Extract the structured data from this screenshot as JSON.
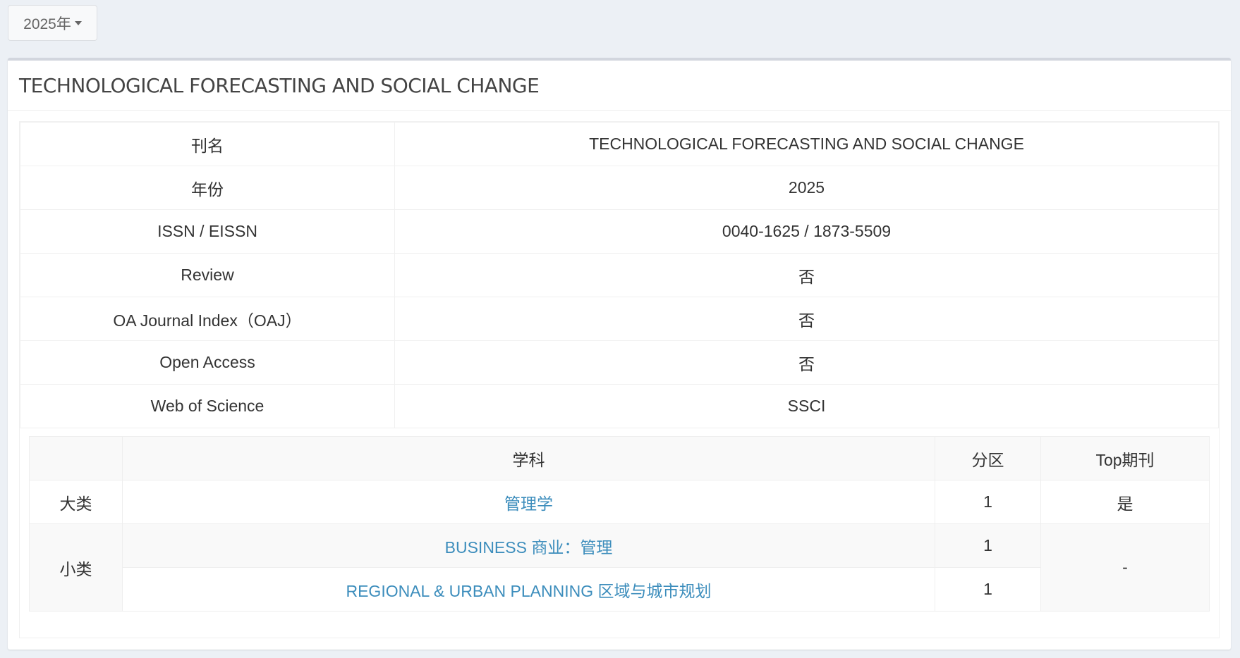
{
  "year_dropdown": {
    "label": "2025年",
    "icon": "caret-down-icon"
  },
  "card": {
    "title": "TECHNOLOGICAL FORECASTING AND SOCIAL CHANGE"
  },
  "info_rows": [
    {
      "key": "刊名",
      "value": "TECHNOLOGICAL FORECASTING AND SOCIAL CHANGE"
    },
    {
      "key": "年份",
      "value": "2025"
    },
    {
      "key": "ISSN / EISSN",
      "value": "0040-1625 / 1873-5509"
    },
    {
      "key": "Review",
      "value": "否"
    },
    {
      "key": "OA Journal Index（OAJ）",
      "value": "否"
    },
    {
      "key": "Open Access",
      "value": "否"
    },
    {
      "key": "Web of Science",
      "value": "SSCI"
    }
  ],
  "subjects": {
    "headers": [
      "",
      "学科",
      "分区",
      "Top期刊"
    ],
    "major": {
      "label": "大类",
      "subject": "管理学",
      "zone": "1",
      "top": "是"
    },
    "minor": {
      "label": "小类",
      "top": "-",
      "items": [
        {
          "subject": "BUSINESS 商业：管理",
          "zone": "1"
        },
        {
          "subject": "REGIONAL & URBAN PLANNING 区域与城市规划",
          "zone": "1"
        }
      ]
    }
  },
  "colors": {
    "link": "#3c8dbc",
    "background": "#ecf0f5"
  }
}
